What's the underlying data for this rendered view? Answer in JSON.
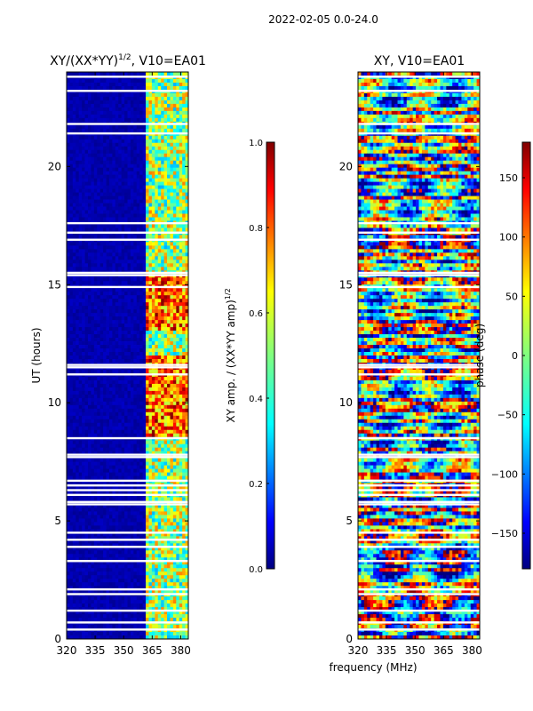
{
  "chart_data": {
    "suptitle": "2022-02-05 0.0-24.0",
    "shared_xlabel": "frequency (MHz)",
    "panels": [
      {
        "type": "heatmap",
        "title_prefix": "XY/(XX*YY)",
        "title_sup": "1/2",
        "title_suffix": ", V10=EA01",
        "ylabel": "UT (hours)",
        "xlim": [
          320,
          384
        ],
        "ylim": [
          0,
          24
        ],
        "xticks": [
          320,
          335,
          350,
          365,
          380
        ],
        "yticks": [
          0,
          5,
          10,
          15,
          20
        ],
        "quantity": "amplitude",
        "colorbar": {
          "label_prefix": "XY amp. / (XX*YY amp)",
          "label_sup": "1/2",
          "range": [
            0.0,
            1.0
          ],
          "ticks": [
            "0.0",
            "0.2",
            "0.4",
            "0.6",
            "0.8",
            "1.0"
          ]
        }
      },
      {
        "type": "heatmap",
        "title_prefix": "XY, V10=EA01",
        "title_sup": "",
        "title_suffix": "",
        "ylabel": "",
        "xlim": [
          320,
          384
        ],
        "ylim": [
          0,
          24
        ],
        "xticks": [
          320,
          335,
          350,
          365,
          380
        ],
        "yticks": [
          0,
          5,
          10,
          15,
          20
        ],
        "quantity": "phase",
        "colorbar": {
          "label_prefix": "phase (deg)",
          "label_sup": "",
          "range": [
            -180,
            180
          ],
          "ticks": [
            "-150",
            "-100",
            "-50",
            "0",
            "50",
            "100",
            "150"
          ]
        }
      }
    ],
    "flagged_rows_ut": [
      0.4,
      0.7,
      1.2,
      1.9,
      2.1,
      3.3,
      3.9,
      4.2,
      4.5,
      5.7,
      5.8,
      6.1,
      6.3,
      6.5,
      6.7,
      7.7,
      7.8,
      8.5,
      11.2,
      11.5,
      11.6,
      14.9,
      15.4,
      15.5,
      16.9,
      17.2,
      17.6,
      21.4,
      21.8,
      23.2,
      23.8
    ]
  }
}
